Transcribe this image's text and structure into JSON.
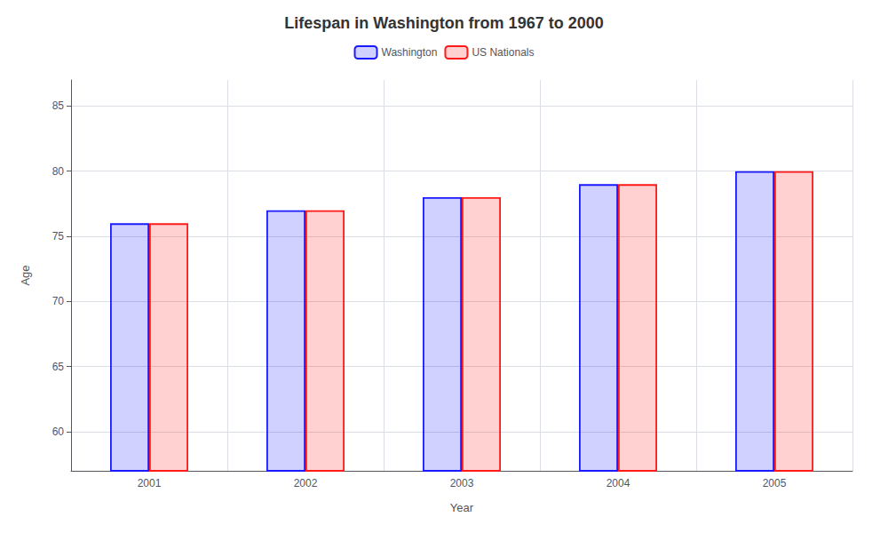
{
  "chart_data": {
    "type": "bar",
    "title": "Lifespan in Washington from 1967 to 2000",
    "xlabel": "Year",
    "ylabel": "Age",
    "categories": [
      "2001",
      "2002",
      "2003",
      "2004",
      "2005"
    ],
    "series": [
      {
        "name": "Washington",
        "color": "#1a1aff",
        "values": [
          76,
          77,
          78,
          79,
          80
        ]
      },
      {
        "name": "US Nationals",
        "color": "#ff1a1a",
        "values": [
          76,
          77,
          78,
          79,
          80
        ]
      }
    ],
    "ylim": [
      57,
      87
    ],
    "yticks": [
      60,
      65,
      70,
      75,
      80,
      85
    ],
    "grid": true,
    "legend": "top"
  }
}
